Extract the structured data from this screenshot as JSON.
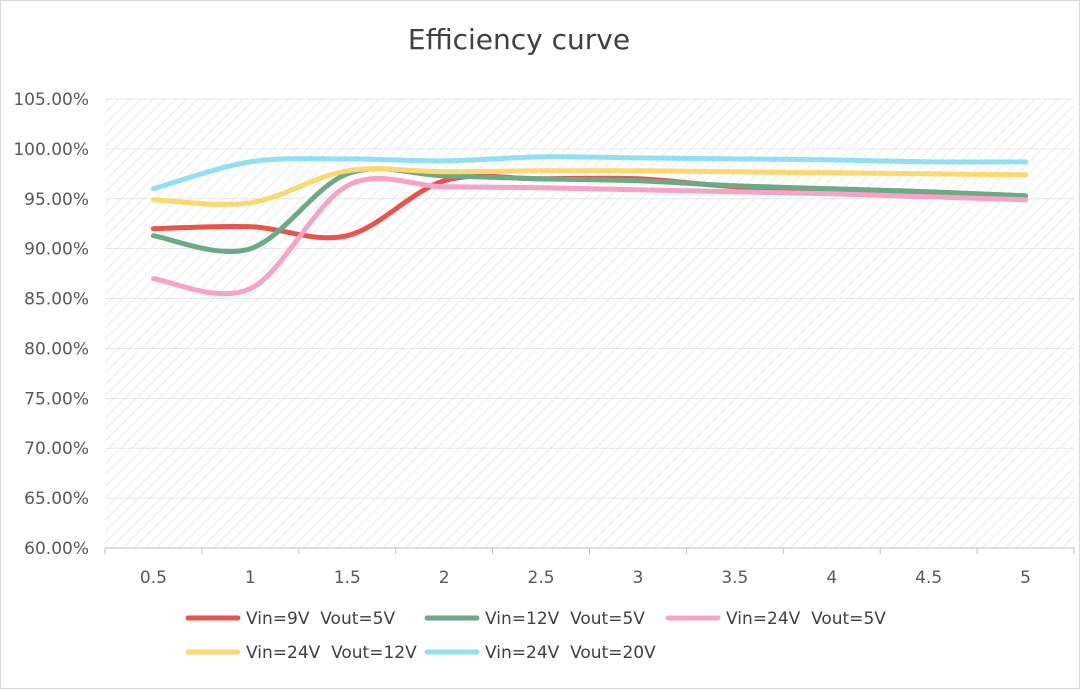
{
  "chart_data": {
    "type": "line",
    "title": "Efficiency curve",
    "xlabel": "",
    "ylabel": "",
    "categories": [
      "0.5",
      "1",
      "1.5",
      "2",
      "2.5",
      "3",
      "3.5",
      "4",
      "4.5",
      "5"
    ],
    "y_ticks": [
      "60.00%",
      "65.00%",
      "70.00%",
      "75.00%",
      "80.00%",
      "85.00%",
      "90.00%",
      "95.00%",
      "100.00%",
      "105.00%"
    ],
    "ylim": [
      60,
      105
    ],
    "grid": true,
    "legend_position": "bottom",
    "series": [
      {
        "name": "Vin=9V  Vout=5V",
        "color": "#e8534c",
        "values": [
          92.0,
          92.2,
          91.3,
          96.8,
          97.0,
          97.0,
          96.2,
          95.8,
          95.4,
          94.9
        ]
      },
      {
        "name": "Vin=12V  Vout=5V",
        "color": "#6aaa84",
        "values": [
          91.3,
          90.0,
          97.5,
          97.3,
          97.0,
          96.8,
          96.3,
          96.0,
          95.7,
          95.3
        ]
      },
      {
        "name": "Vin=24V  Vout=5V",
        "color": "#f5a3c7",
        "values": [
          87.0,
          86.0,
          96.3,
          96.2,
          96.1,
          95.9,
          95.7,
          95.5,
          95.2,
          94.9
        ]
      },
      {
        "name": "Vin=24V  Vout=12V",
        "color": "#fbd870",
        "values": [
          94.9,
          94.6,
          97.8,
          97.7,
          97.8,
          97.8,
          97.7,
          97.6,
          97.5,
          97.4
        ]
      },
      {
        "name": "Vin=24V  Vout=20V",
        "color": "#91dff2",
        "values": [
          96.0,
          98.7,
          99.0,
          98.8,
          99.2,
          99.1,
          99.0,
          98.9,
          98.7,
          98.7
        ]
      }
    ]
  }
}
